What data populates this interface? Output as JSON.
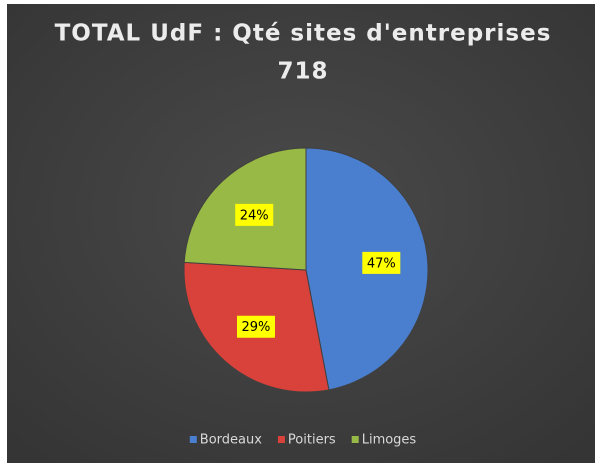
{
  "chart_data": {
    "type": "pie",
    "title": "TOTAL UdF : Qté sites d'entreprises",
    "subtitle": "718",
    "categories": [
      "Bordeaux",
      "Poitiers",
      "Limoges"
    ],
    "values": [
      47,
      29,
      24
    ],
    "value_labels": [
      "47%",
      "29%",
      "24%"
    ],
    "colors": [
      "#4a7fd0",
      "#d9413b",
      "#98b946"
    ],
    "legend": "bottom"
  }
}
